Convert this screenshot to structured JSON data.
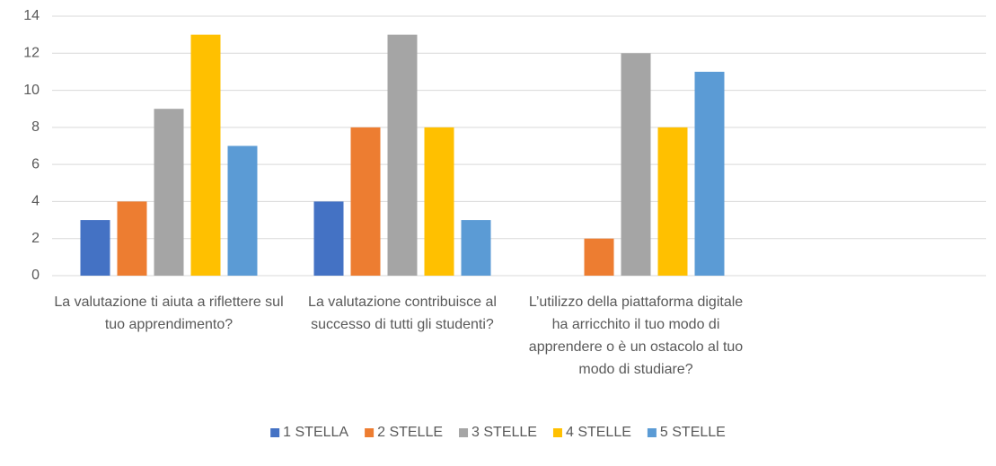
{
  "chart_data": {
    "type": "bar",
    "categories": [
      "La valutazione ti aiuta a riflettere sul tuo apprendimento?",
      "La valutazione contribuisce al successo di tutti gli studenti?",
      "L’utilizzo della piattaforma digitale ha arricchito il tuo modo di apprendere o è un ostacolo al tuo modo di studiare?",
      null
    ],
    "series": [
      {
        "name": "1 STELLA",
        "color": "#4472c4",
        "values": [
          3,
          4,
          0,
          null
        ]
      },
      {
        "name": "2 STELLE",
        "color": "#ed7d31",
        "values": [
          4,
          8,
          2,
          null
        ]
      },
      {
        "name": "3 STELLE",
        "color": "#a5a5a5",
        "values": [
          9,
          13,
          12,
          null
        ]
      },
      {
        "name": "4 STELLE",
        "color": "#ffc000",
        "values": [
          13,
          8,
          8,
          null
        ]
      },
      {
        "name": "5 STELLE",
        "color": "#5b9bd5",
        "values": [
          7,
          3,
          11,
          null
        ]
      }
    ],
    "ylim": [
      0,
      14
    ],
    "yticks": [
      0,
      2,
      4,
      6,
      8,
      10,
      12,
      14
    ],
    "grid": true,
    "legend": "bottom"
  }
}
